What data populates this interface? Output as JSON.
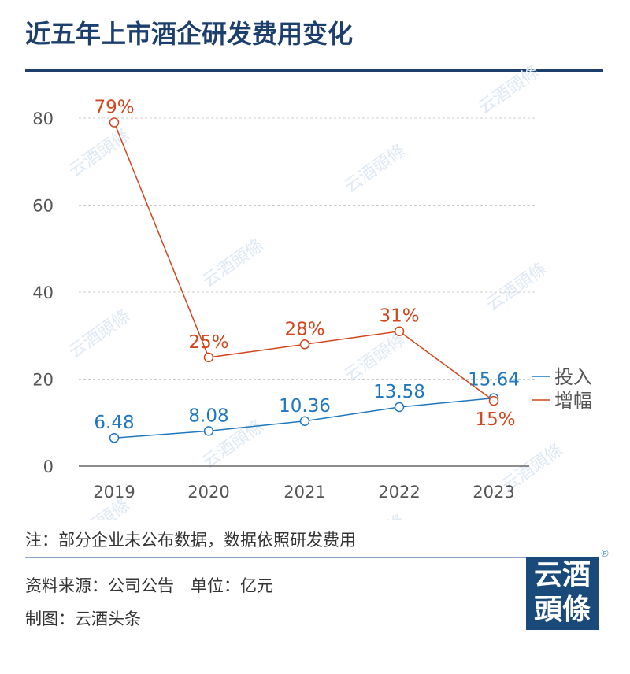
{
  "title": "近五年上市酒企研发费用变化",
  "notes": {
    "note": "注：部分企业未公布数据，数据依照研发费用",
    "source": "资料来源：公司公告　单位：亿元",
    "credit": "制图：云酒头条"
  },
  "logo": {
    "text_line1": "云酒",
    "text_line2": "頭條",
    "mark": "®"
  },
  "watermark": "云酒頭條",
  "colors": {
    "investment": "#1f77c0",
    "growth": "#d2461e",
    "title": "#1d3f6e"
  },
  "chart_data": {
    "type": "line",
    "categories": [
      "2019",
      "2020",
      "2021",
      "2022",
      "2023"
    ],
    "ylim": [
      0,
      80
    ],
    "yticks": [
      0,
      20,
      40,
      60,
      80
    ],
    "grid": true,
    "legend_placement": "right",
    "series": [
      {
        "name": "投入",
        "values": [
          6.48,
          8.08,
          10.36,
          13.58,
          15.64
        ],
        "labels": [
          "6.48",
          "8.08",
          "10.36",
          "13.58",
          "15.64"
        ]
      },
      {
        "name": "增幅",
        "values": [
          79,
          25,
          28,
          31,
          15
        ],
        "labels": [
          "79%",
          "25%",
          "28%",
          "31%",
          "15%"
        ]
      }
    ]
  }
}
